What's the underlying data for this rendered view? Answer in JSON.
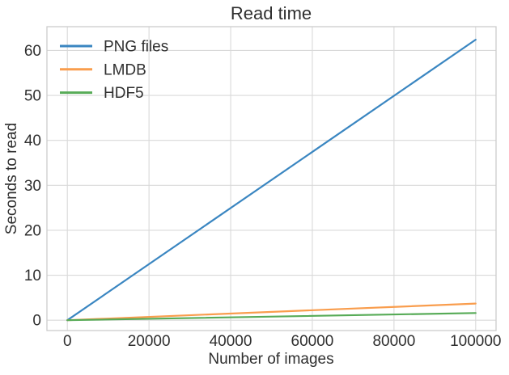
{
  "chart_data": {
    "type": "line",
    "title": "Read time",
    "xlabel": "Number of images",
    "ylabel": "Seconds to read",
    "xlim": [
      -5000,
      105000
    ],
    "ylim": [
      -2.3,
      65.3
    ],
    "x_ticks": [
      0,
      20000,
      40000,
      60000,
      80000,
      100000
    ],
    "y_ticks": [
      0,
      10,
      20,
      30,
      40,
      50,
      60
    ],
    "grid": true,
    "legend_position": "upper-left",
    "legend_entries": [
      "PNG files",
      "LMDB",
      "HDF5"
    ],
    "series": [
      {
        "name": "PNG files",
        "color": "#3a86c1",
        "x": [
          0,
          100000
        ],
        "y": [
          0,
          62.4
        ]
      },
      {
        "name": "LMDB",
        "color": "#f99d4d",
        "x": [
          0,
          100000
        ],
        "y": [
          0,
          3.7
        ]
      },
      {
        "name": "HDF5",
        "color": "#57ab57",
        "x": [
          0,
          100000
        ],
        "y": [
          0,
          1.6
        ]
      }
    ],
    "colors": {
      "grid": "#d9d9d9",
      "frame": "#cccccc",
      "text": "#2f2f2f",
      "background": "#ffffff"
    }
  }
}
